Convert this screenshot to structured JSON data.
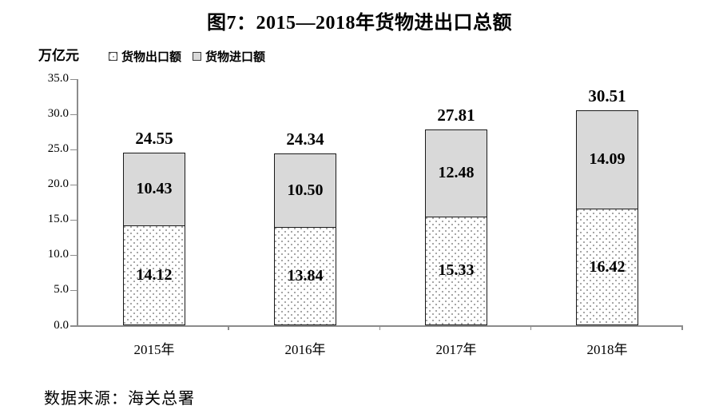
{
  "page": {
    "title": "图7：2015—2018年货物进出口总额",
    "source": "数据来源：海关总署"
  },
  "chart_data": {
    "type": "bar",
    "stacked": true,
    "title": "图7：2015—2018年货物进出口总额",
    "unit_label": "万亿元",
    "categories": [
      "2015年",
      "2016年",
      "2017年",
      "2018年"
    ],
    "series": [
      {
        "name": "货物出口额",
        "style": "dotted-white",
        "values": [
          14.12,
          13.84,
          15.33,
          16.42
        ]
      },
      {
        "name": "货物进口额",
        "style": "solid-gray",
        "values": [
          10.43,
          10.5,
          12.48,
          14.09
        ]
      }
    ],
    "totals": [
      24.55,
      24.34,
      27.81,
      30.51
    ],
    "y_axis": {
      "min": 0.0,
      "max": 35.0,
      "step": 5.0,
      "decimals": 1
    },
    "legend_position": "top-left",
    "grid": false,
    "colors": {
      "import_fill": "#d9d9d9",
      "export_fill": "#ffffff",
      "export_dot": "#909090",
      "bar_border": "#1a1a1a",
      "axis": "#8c8c8c",
      "text": "#000000"
    },
    "source_note": "数据来源：海关总署"
  }
}
